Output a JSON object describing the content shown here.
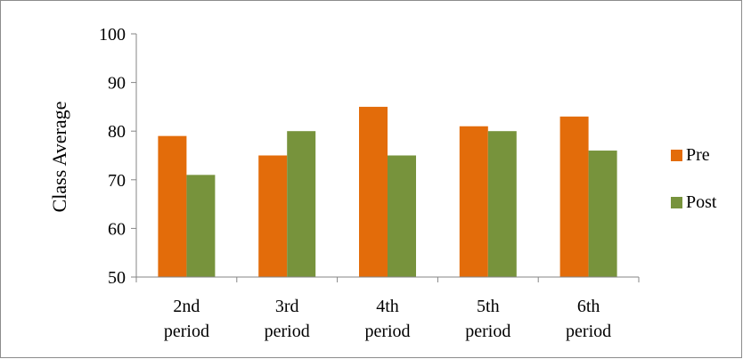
{
  "chart_data": {
    "type": "bar",
    "categories": [
      [
        "2nd",
        "period"
      ],
      [
        "3rd",
        "period"
      ],
      [
        "4th",
        "period"
      ],
      [
        "5th",
        "period"
      ],
      [
        "6th",
        "period"
      ]
    ],
    "series": [
      {
        "name": "Pre",
        "color": "#E36C0A",
        "values": [
          79,
          75,
          85,
          81,
          83
        ]
      },
      {
        "name": "Post",
        "color": "#77933C",
        "values": [
          71,
          80,
          75,
          80,
          76
        ]
      }
    ],
    "title": "",
    "xlabel": "",
    "ylabel": "Class Average",
    "ylim": [
      50,
      100
    ],
    "yticks": [
      "50",
      "60",
      "70",
      "80",
      "90",
      "100"
    ],
    "grid": false,
    "legend": "right"
  }
}
